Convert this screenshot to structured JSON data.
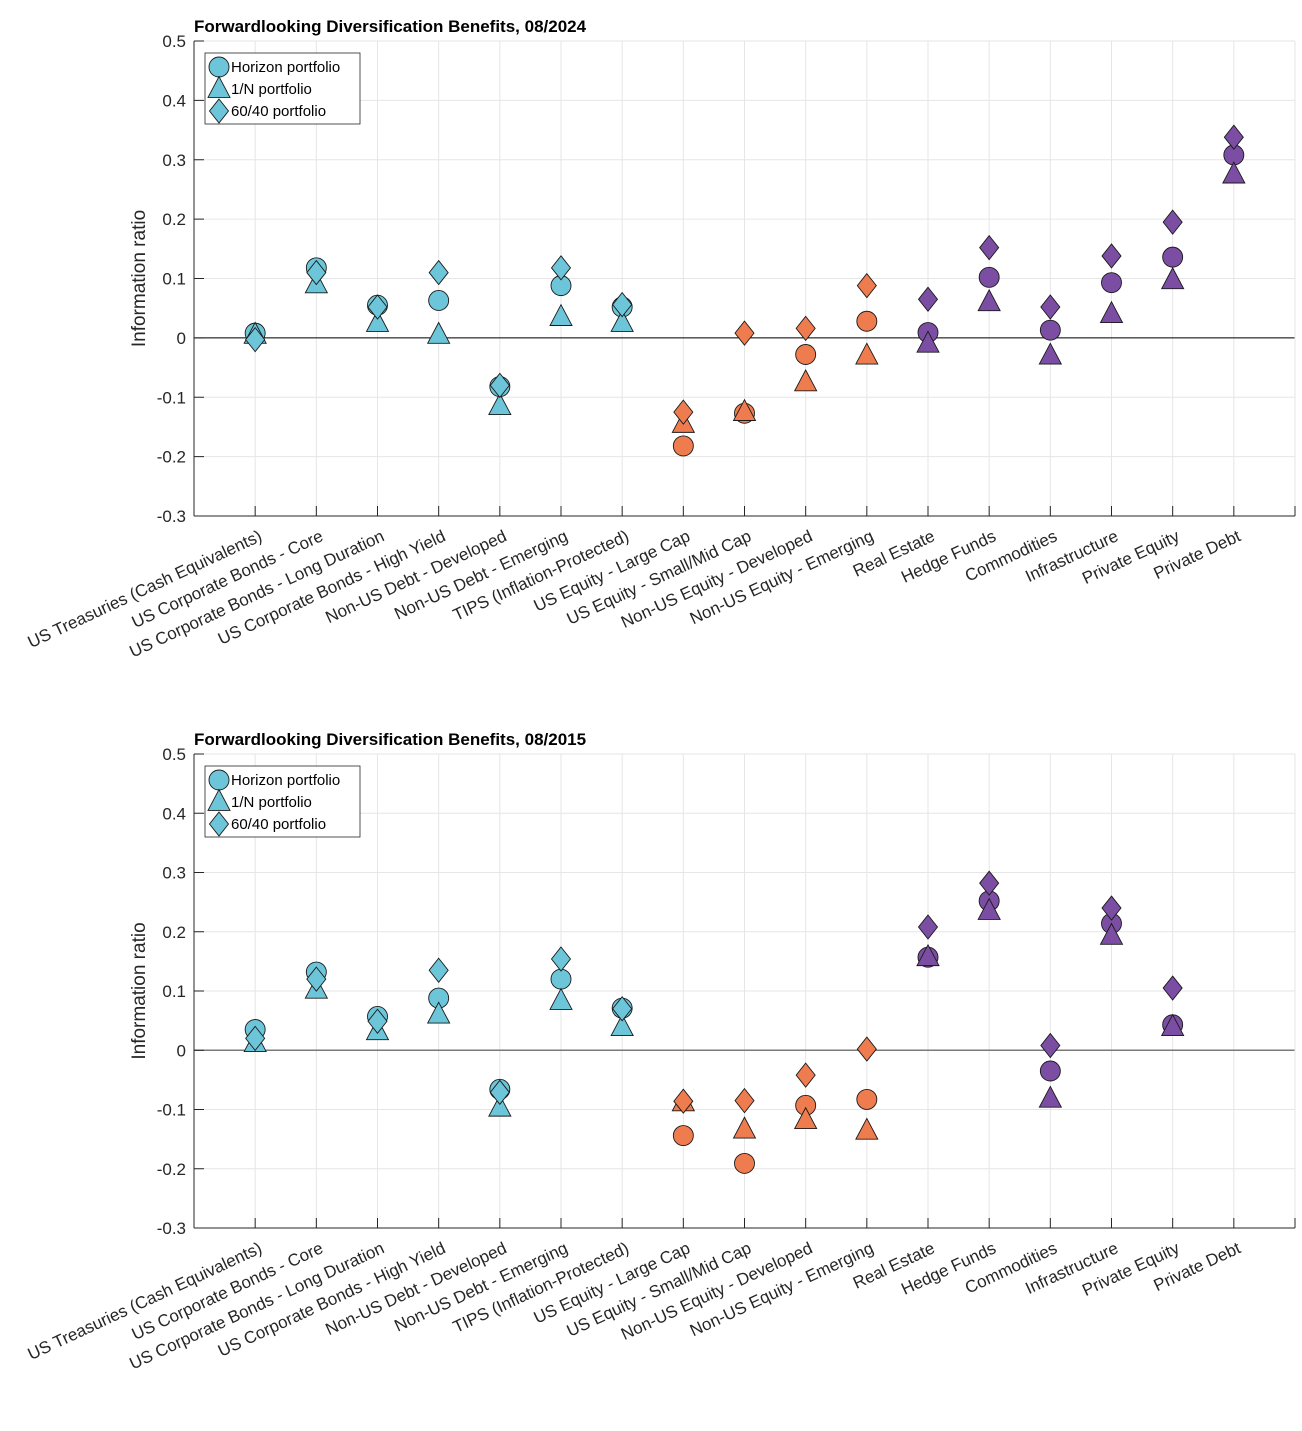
{
  "chart_data": [
    {
      "type": "scatter",
      "title": "Forwardlooking Diversification Benefits, 08/2024",
      "xlabel": "",
      "ylabel": "Information ratio",
      "ylim": [
        -0.3,
        0.5
      ],
      "yticks": [
        "-0.3",
        "-0.2",
        "-0.1",
        "0",
        "0.1",
        "0.2",
        "0.3",
        "0.4",
        "0.5"
      ],
      "grid": true,
      "legend_position": "top-left",
      "categories": [
        "US Treasuries (Cash Equivalents)",
        "US Corporate Bonds - Core",
        "US Corporate Bonds - Long Duration",
        "US Corporate Bonds - High Yield",
        "Non-US Debt - Developed",
        "Non-US Debt - Emerging",
        "TIPS (Inflation-Protected)",
        "US Equity - Large Cap",
        "US Equity - Small/Mid Cap",
        "Non-US Equity - Developed",
        "Non-US Equity - Emerging",
        "Real Estate",
        "Hedge Funds",
        "Commodities",
        "Infrastructure",
        "Private Equity",
        "Private Debt"
      ],
      "category_groups": [
        "fixed",
        "fixed",
        "fixed",
        "fixed",
        "fixed",
        "fixed",
        "fixed",
        "equity",
        "equity",
        "equity",
        "equity",
        "alt",
        "alt",
        "alt",
        "alt",
        "alt",
        "alt"
      ],
      "series": [
        {
          "name": "Horizon portfolio",
          "marker": "circle",
          "values": [
            0.008,
            0.118,
            0.055,
            0.063,
            -0.082,
            0.088,
            0.052,
            -0.182,
            -0.127,
            -0.028,
            0.028,
            0.009,
            0.102,
            0.013,
            0.093,
            0.136,
            0.308
          ]
        },
        {
          "name": "1/N portfolio",
          "marker": "triangle",
          "values": [
            0.005,
            0.09,
            0.025,
            0.005,
            -0.115,
            0.035,
            0.025,
            -0.145,
            -0.125,
            -0.075,
            -0.03,
            -0.01,
            0.06,
            -0.03,
            0.04,
            0.097,
            0.275
          ]
        },
        {
          "name": "60/40 portfolio",
          "marker": "diamond",
          "values": [
            -0.003,
            0.11,
            0.052,
            0.11,
            -0.08,
            0.118,
            0.056,
            -0.125,
            0.008,
            0.016,
            0.088,
            0.065,
            0.152,
            0.052,
            0.138,
            0.195,
            0.338
          ]
        }
      ]
    },
    {
      "type": "scatter",
      "title": "Forwardlooking Diversification Benefits, 08/2015",
      "xlabel": "",
      "ylabel": "Information ratio",
      "ylim": [
        -0.3,
        0.5
      ],
      "yticks": [
        "-0.3",
        "-0.2",
        "-0.1",
        "0",
        "0.1",
        "0.2",
        "0.3",
        "0.4",
        "0.5"
      ],
      "grid": true,
      "legend_position": "top-left",
      "categories": [
        "US Treasuries (Cash Equivalents)",
        "US Corporate Bonds - Core",
        "US Corporate Bonds - Long Duration",
        "US Corporate Bonds - High Yield",
        "Non-US Debt - Developed",
        "Non-US Debt - Emerging",
        "TIPS (Inflation-Protected)",
        "US Equity - Large Cap",
        "US Equity - Small/Mid Cap",
        "Non-US Equity - Developed",
        "Non-US Equity - Emerging",
        "Real Estate",
        "Hedge Funds",
        "Commodities",
        "Infrastructure",
        "Private Equity",
        "Private Debt"
      ],
      "category_groups": [
        "fixed",
        "fixed",
        "fixed",
        "fixed",
        "fixed",
        "fixed",
        "fixed",
        "equity",
        "equity",
        "equity",
        "equity",
        "alt",
        "alt",
        "alt",
        "alt",
        "alt",
        "alt"
      ],
      "series": [
        {
          "name": "Horizon portfolio",
          "marker": "circle",
          "values": [
            0.035,
            0.132,
            0.057,
            0.088,
            -0.066,
            0.12,
            0.071,
            -0.144,
            -0.191,
            -0.093,
            -0.083,
            0.157,
            0.252,
            -0.035,
            0.214,
            0.043,
            null
          ]
        },
        {
          "name": "1/N portfolio",
          "marker": "triangle",
          "values": [
            0.012,
            0.102,
            0.032,
            0.06,
            -0.097,
            0.083,
            0.039,
            -0.088,
            -0.134,
            -0.118,
            -0.136,
            0.157,
            0.235,
            -0.082,
            0.193,
            0.039,
            null
          ]
        },
        {
          "name": "60/40 portfolio",
          "marker": "diamond",
          "values": [
            0.02,
            0.12,
            0.049,
            0.135,
            -0.071,
            0.154,
            0.07,
            -0.086,
            -0.085,
            -0.042,
            0.002,
            0.208,
            0.282,
            0.008,
            0.24,
            0.105,
            null
          ]
        }
      ]
    }
  ],
  "colors": {
    "fixed": "#6cc5d8",
    "equity": "#ef7c4e",
    "alt": "#7b4ea3",
    "legend": "#6cc5d8"
  }
}
